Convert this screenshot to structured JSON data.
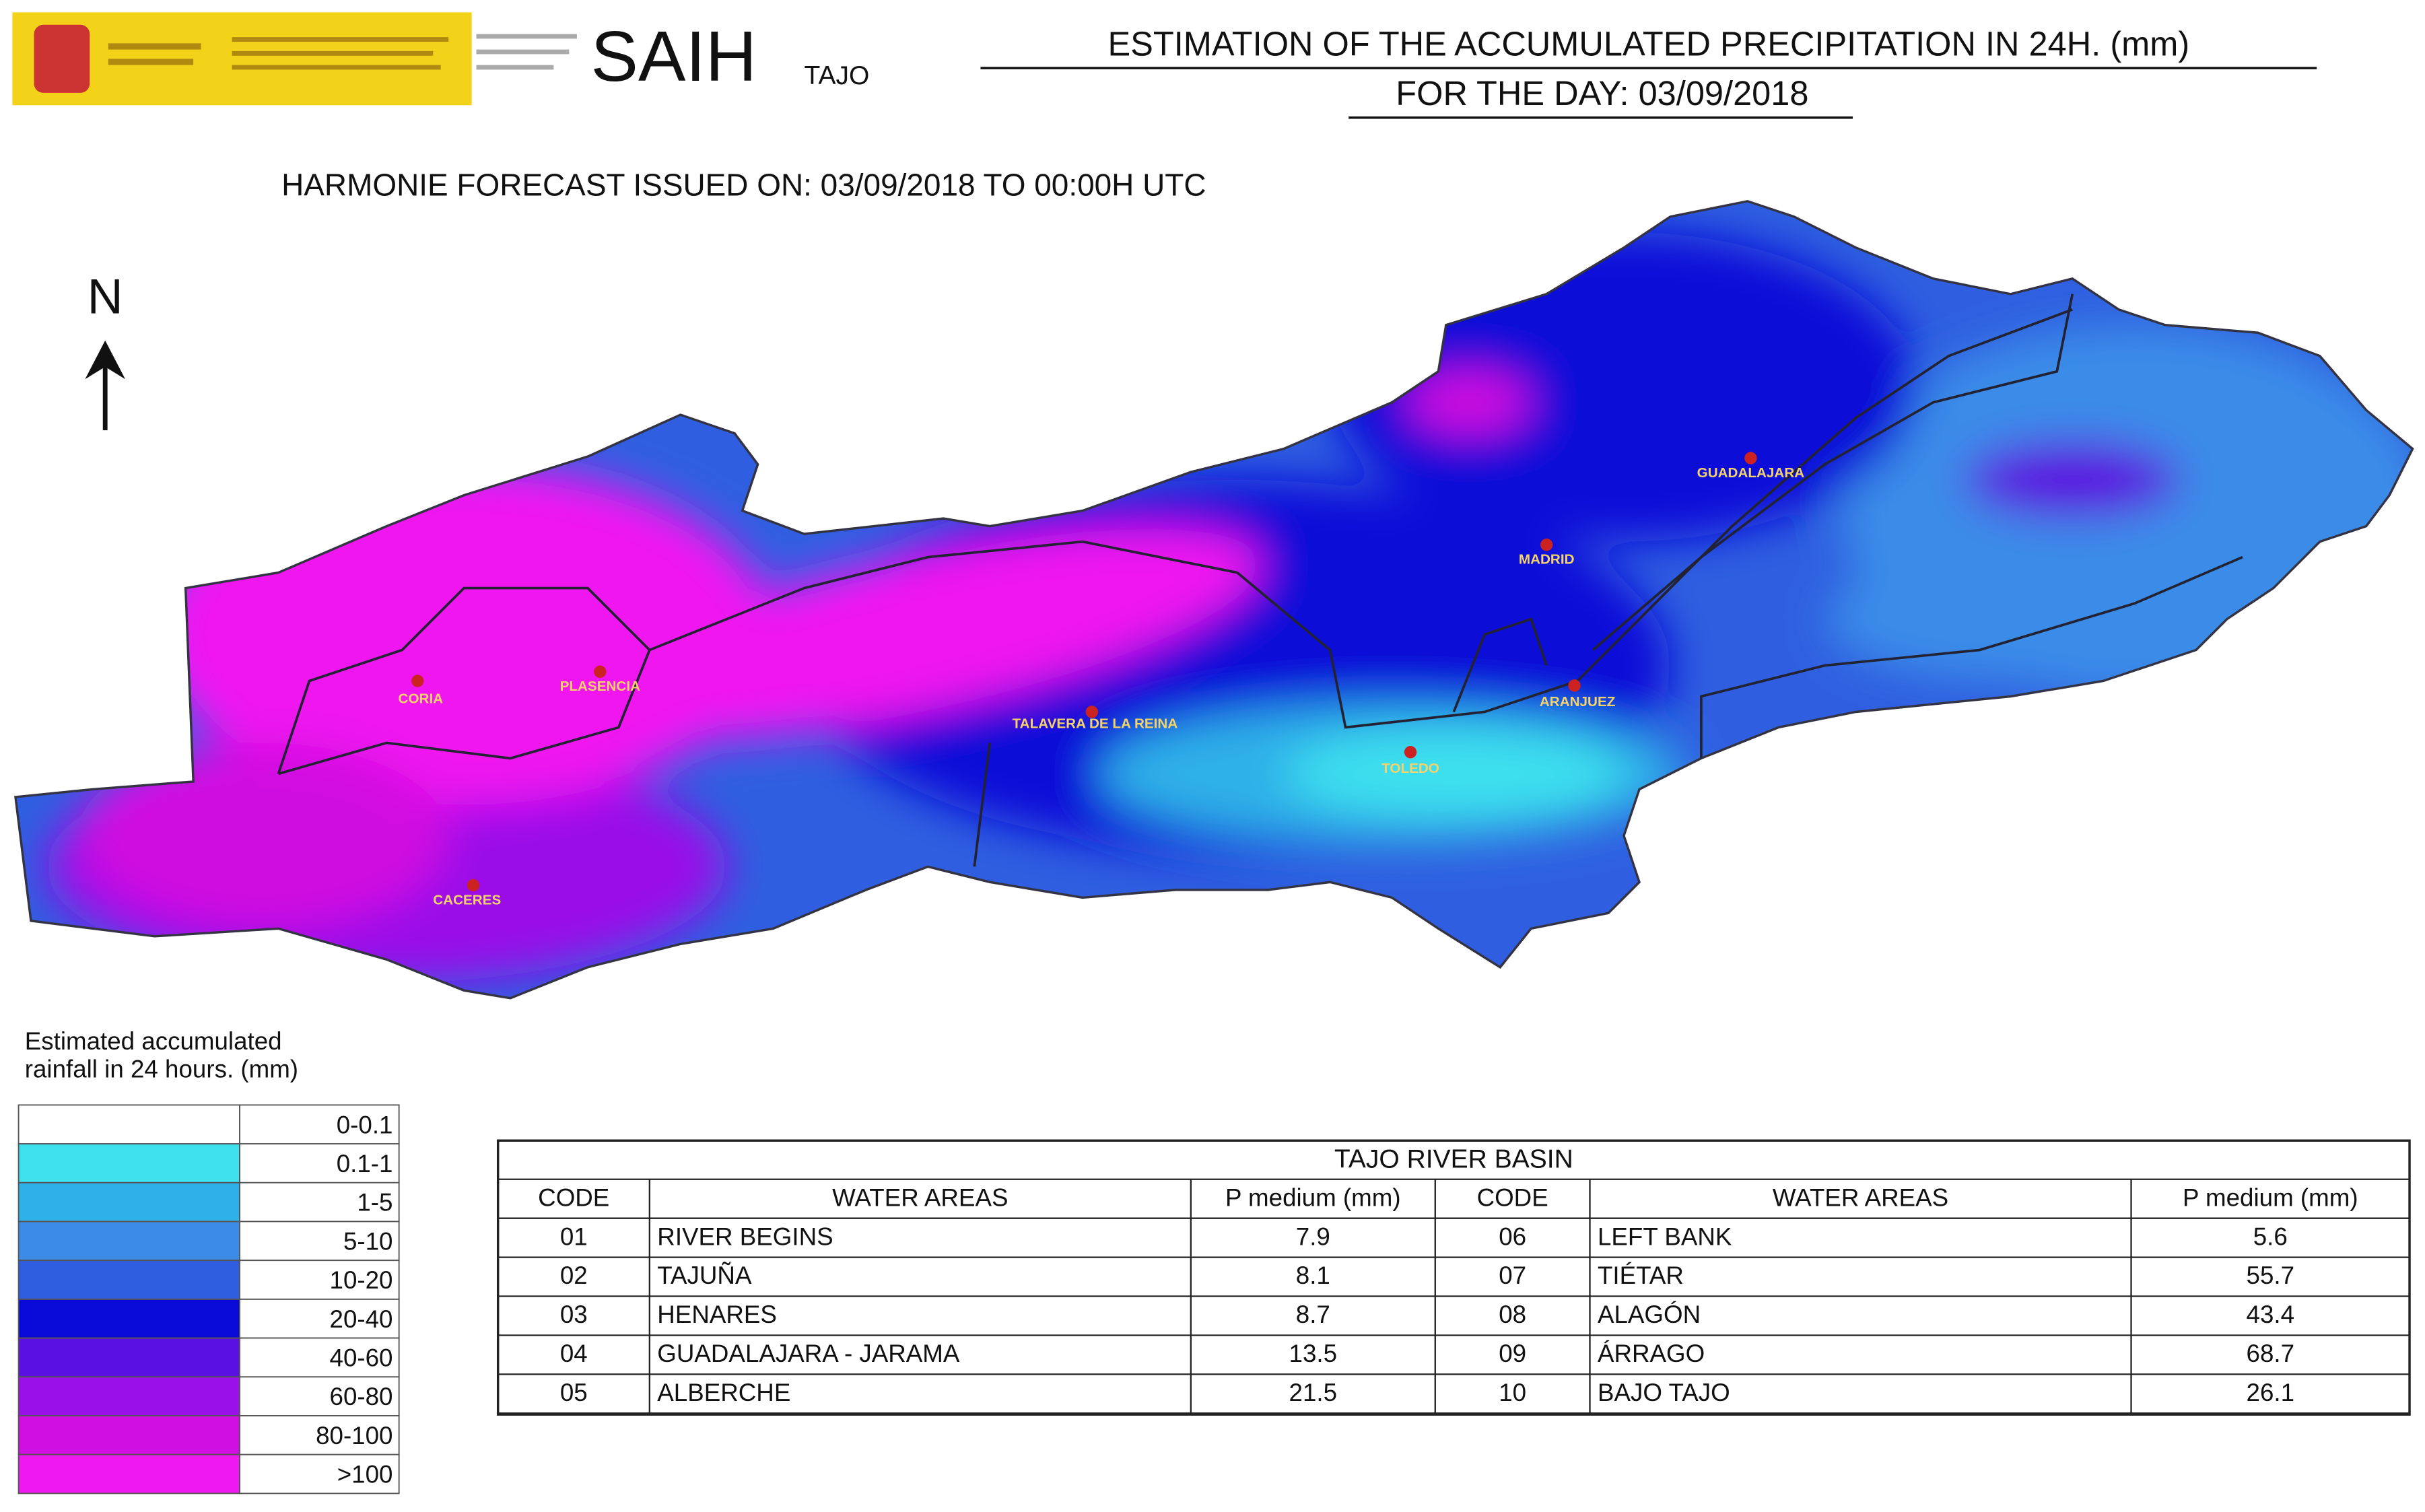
{
  "header": {
    "logo_name": "SAIH",
    "logo_sub": "TAJO",
    "title": "ESTIMATION OF THE ACCUMULATED PRECIPITATION IN 24H. (mm)",
    "subtitle": "FOR THE DAY: 03/09/2018",
    "forecast": "HARMONIE FORECAST ISSUED ON: 03/09/2018 TO 00:00H UTC"
  },
  "north": "N",
  "map": {
    "cities": [
      "CORIA",
      "PLASENCIA",
      "TALAVERA DE LA REINA",
      "TOLEDO",
      "MADRID",
      "GUADALAJARA",
      "ARANJUEZ",
      "CACERES"
    ]
  },
  "legend": {
    "title": [
      "Estimated accumulated",
      "rainfall in 24 hours.  (mm)"
    ],
    "items": [
      {
        "label": "0-0.1",
        "color": "#ffffff"
      },
      {
        "label": "0.1-1",
        "color": "#3ee0ee"
      },
      {
        "label": "1-5",
        "color": "#2fb0e8"
      },
      {
        "label": "5-10",
        "color": "#3a8ce8"
      },
      {
        "label": "10-20",
        "color": "#2f5fe0"
      },
      {
        "label": "20-40",
        "color": "#0a0ad8"
      },
      {
        "label": "40-60",
        "color": "#5a10e0"
      },
      {
        "label": "60-80",
        "color": "#9a10e8"
      },
      {
        "label": "80-100",
        "color": "#d010e0"
      },
      {
        "label": ">100",
        "color": "#f018f0"
      }
    ]
  },
  "table": {
    "title": "TAJO RIVER BASIN",
    "columns": [
      "CODE",
      "WATER AREAS",
      "P medium (mm)",
      "CODE",
      "WATER AREAS",
      "P medium (mm)"
    ],
    "rows": [
      [
        "01",
        "RIVER BEGINS",
        "7.9",
        "06",
        "LEFT BANK",
        "5.6"
      ],
      [
        "02",
        "TAJUÑA",
        "8.1",
        "07",
        "TIÉTAR",
        "55.7"
      ],
      [
        "03",
        "HENARES",
        "8.7",
        "08",
        "ALAGÓN",
        "43.4"
      ],
      [
        "04",
        "GUADALAJARA - JARAMA",
        "13.5",
        "09",
        "ÁRRAGO",
        "68.7"
      ],
      [
        "05",
        "ALBERCHE",
        "21.5",
        "10",
        "BAJO TAJO",
        "26.1"
      ]
    ]
  }
}
